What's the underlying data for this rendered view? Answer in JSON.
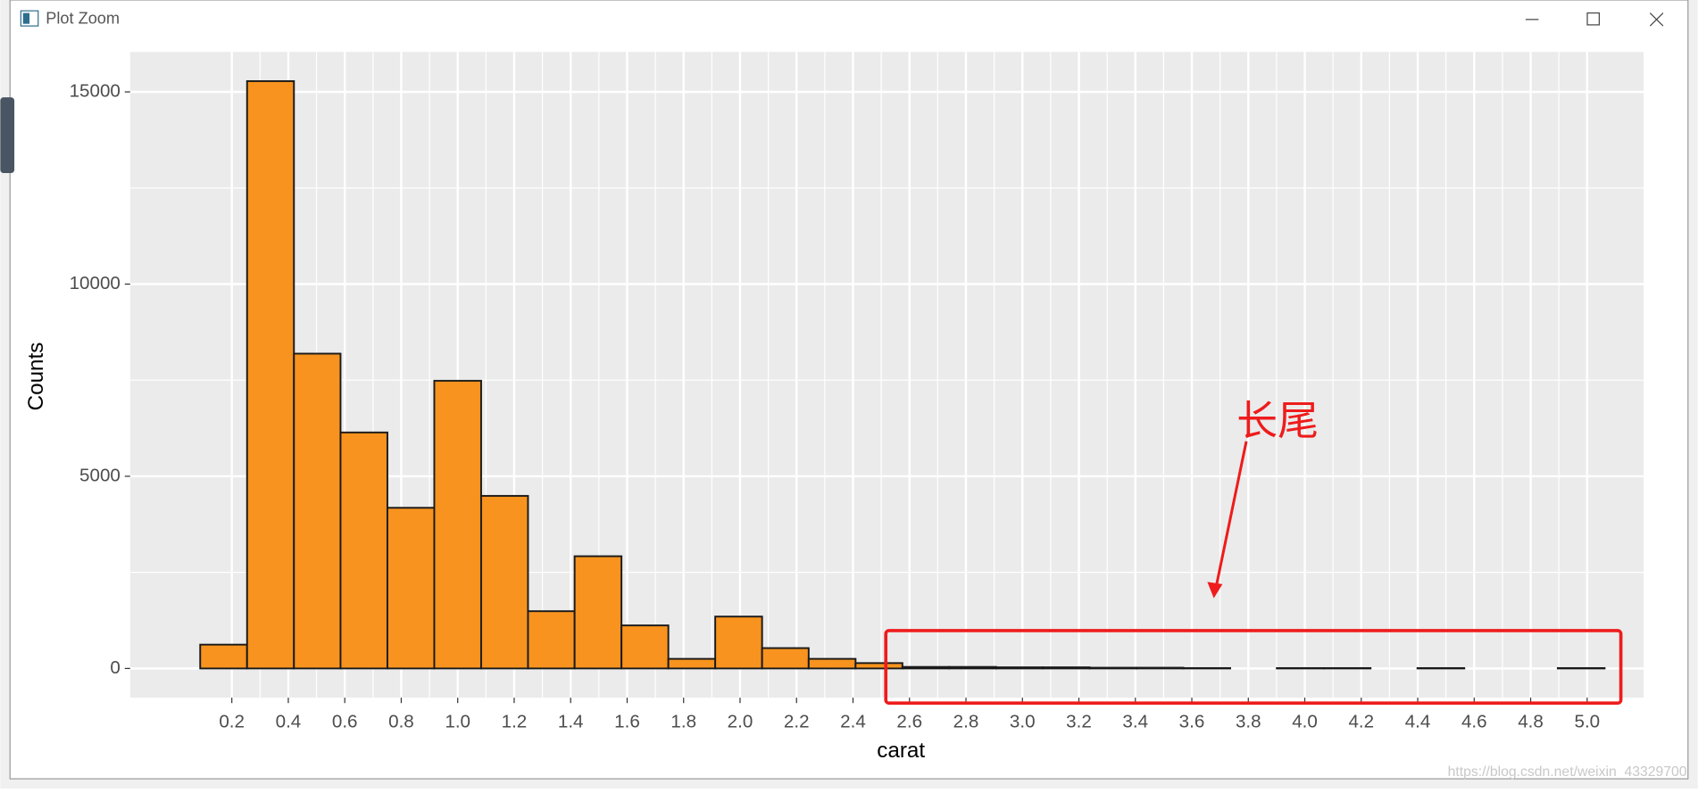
{
  "window": {
    "title": "Plot Zoom"
  },
  "chart_data": {
    "type": "histogram",
    "xlabel": "carat",
    "ylabel": "Counts",
    "annotation": "长尾",
    "bins": [
      0.088,
      0.254,
      0.42,
      0.585,
      0.751,
      0.917,
      1.083,
      1.249,
      1.414,
      1.58,
      1.746,
      1.912,
      2.078,
      2.243,
      2.409,
      2.575,
      2.741,
      2.907,
      3.072,
      3.238,
      3.404,
      3.57,
      3.736,
      3.901,
      4.067,
      4.233,
      4.399,
      4.565,
      4.73,
      4.896,
      5.062
    ],
    "values": [
      620,
      15280,
      8190,
      6140,
      4180,
      7485,
      4490,
      1490,
      2920,
      1120,
      250,
      1350,
      530,
      250,
      140,
      40,
      40,
      30,
      30,
      20,
      20,
      10,
      0,
      10,
      10,
      0,
      10,
      0,
      0,
      10
    ],
    "color": "#f7931e",
    "edge_color": "#1a1a1a",
    "xlim": [
      -0.16,
      5.2
    ],
    "ylim": [
      -760,
      16040
    ],
    "xticks": [
      0.2,
      0.4,
      0.6,
      0.8,
      {
        "value": 1.0,
        "label": "1.0"
      },
      1.2,
      1.4,
      1.6,
      1.8,
      {
        "value": 2.0,
        "label": "2.0"
      },
      2.2,
      2.4,
      2.6,
      2.8,
      {
        "value": 3.0,
        "label": "3.0"
      },
      3.2,
      3.4,
      3.6,
      3.8,
      {
        "value": 4.0,
        "label": "4.0"
      },
      4.2,
      4.4,
      4.6,
      4.8,
      {
        "value": 5.0,
        "label": "5.0"
      }
    ],
    "yticks": [
      0,
      5000,
      10000,
      15000
    ],
    "grid": true
  },
  "watermark": "https://blog.csdn.net/weixin_43329700"
}
